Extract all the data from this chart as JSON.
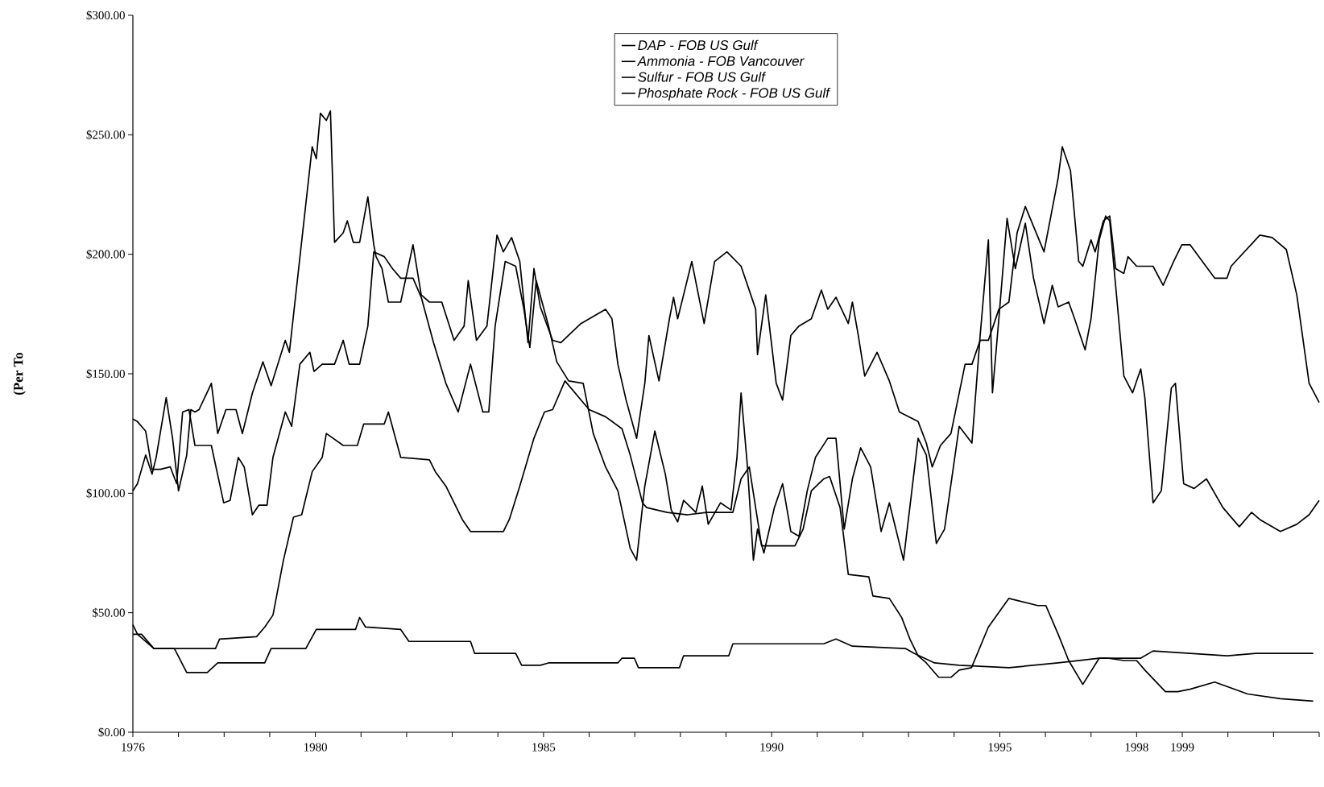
{
  "chart_data": {
    "type": "line",
    "ylabel": "(Per To",
    "xlim": [
      1976,
      2002
    ],
    "ylim": [
      0,
      300
    ],
    "yticks": [
      {
        "value": 0,
        "label": "$0.00"
      },
      {
        "value": 50,
        "label": "$50.00"
      },
      {
        "value": 100,
        "label": "$100.00"
      },
      {
        "value": 150,
        "label": "$150.00"
      },
      {
        "value": 200,
        "label": "$200.00"
      },
      {
        "value": 250,
        "label": "$250.00"
      },
      {
        "value": 300,
        "label": "$300.00"
      }
    ],
    "xticks": [
      1976,
      {
        "value": 1977,
        "label": null
      },
      {
        "value": 1978,
        "label": null
      },
      {
        "value": 1979,
        "label": null
      },
      1980,
      {
        "value": 1981,
        "label": null
      },
      {
        "value": 1982,
        "label": null
      },
      {
        "value": 1983,
        "label": null
      },
      {
        "value": 1984,
        "label": null
      },
      1985,
      {
        "value": 1986,
        "label": null
      },
      {
        "value": 1987,
        "label": null
      },
      {
        "value": 1988,
        "label": null
      },
      {
        "value": 1989,
        "label": null
      },
      1990,
      {
        "value": 1991,
        "label": null
      },
      {
        "value": 1992,
        "label": null
      },
      {
        "value": 1993,
        "label": null
      },
      {
        "value": 1994,
        "label": null
      },
      1995,
      {
        "value": 1996,
        "label": null
      },
      {
        "value": 1997,
        "label": null
      },
      1998,
      1999,
      {
        "value": 2000,
        "label": null
      },
      {
        "value": 2001,
        "label": null
      },
      {
        "value": 2002,
        "label": null
      }
    ],
    "legend": "top",
    "grid": false,
    "series": [
      {
        "name": "DAP - FOB US Gulf",
        "color": "#000000",
        "x": [
          1976.0,
          1976.1,
          1976.28,
          1976.42,
          1976.51,
          1976.73,
          1976.87,
          1977.0,
          1977.18,
          1977.27,
          1977.36,
          1977.45,
          1977.72,
          1977.86,
          1978.04,
          1978.26,
          1978.4,
          1978.62,
          1978.85,
          1979.03,
          1979.34,
          1979.43,
          1979.61,
          1979.93,
          1980.02,
          1980.11,
          1980.24,
          1980.33,
          1980.42,
          1980.61,
          1980.7,
          1980.83,
          1980.97,
          1981.15,
          1981.28,
          1981.33,
          1981.46,
          1981.6,
          1981.87,
          1982.14,
          1982.32,
          1982.5,
          1982.77,
          1983.04,
          1983.26,
          1983.35,
          1983.53,
          1983.76,
          1983.98,
          1984.12,
          1984.3,
          1984.48,
          1984.66,
          1984.79,
          1984.93,
          1985.2,
          1985.38,
          1985.82,
          1986.36,
          1986.5,
          1986.63,
          1986.81,
          1987.04,
          1987.22,
          1987.31,
          1987.53,
          1987.76,
          1987.85,
          1987.94,
          1988.07,
          1988.25,
          1988.52,
          1988.75,
          1989.02,
          1989.33,
          1989.65,
          1989.69,
          1989.87,
          1990.1,
          1990.24,
          1990.42,
          1990.6,
          1990.87,
          1991.09,
          1991.23,
          1991.41,
          1991.68,
          1991.77,
          1991.9,
          1992.04,
          1992.31,
          1992.58,
          1992.8,
          1993.21,
          1993.39,
          1993.52,
          1993.7,
          1993.93,
          1994.24,
          1994.39,
          1994.57,
          1994.75,
          1994.98,
          1995.2,
          1995.38,
          1995.56,
          1995.97,
          1996.28,
          1996.37,
          1996.55,
          1996.73,
          1996.82,
          1997.0,
          1997.09,
          1997.27,
          1997.41,
          1997.54,
          1997.72,
          1997.81,
          1998.0,
          1998.36,
          1998.58,
          1998.81,
          1998.99,
          1999.17,
          1999.71,
          1999.98,
          2000.07,
          2000.7,
          2000.97,
          2001.28,
          2001.51,
          2001.78,
          2002.0
        ],
        "values": [
          101,
          104,
          116,
          108,
          115,
          140,
          123,
          101,
          116,
          135,
          134,
          135,
          146,
          125,
          135,
          135,
          125,
          142,
          155,
          145,
          164,
          159,
          190,
          245,
          240,
          259,
          256,
          260,
          205,
          209,
          214,
          205,
          205,
          224,
          204,
          199,
          194,
          180,
          180,
          204,
          183,
          180,
          180,
          164,
          170,
          189,
          164,
          170,
          208,
          201,
          207,
          197,
          163,
          194,
          178,
          164,
          163,
          171,
          177,
          173,
          154,
          139,
          123,
          146,
          166,
          147,
          173,
          182,
          173,
          183,
          197,
          171,
          197,
          201,
          195,
          177,
          158,
          183,
          146,
          139,
          166,
          170,
          173,
          185,
          177,
          182,
          171,
          180,
          166,
          149,
          159,
          147,
          134,
          130,
          121,
          111,
          120,
          125,
          154,
          154,
          164,
          164,
          177,
          180,
          209,
          220,
          201,
          232,
          245,
          235,
          197,
          195,
          206,
          201,
          214,
          216,
          194,
          192,
          199,
          195,
          195,
          187,
          197,
          204,
          204,
          190,
          190,
          195,
          208,
          207,
          202,
          183,
          146,
          138
        ]
      },
      {
        "name": "Ammonia - FOB Vancouver",
        "color": "#000000",
        "x": [
          1976.0,
          1976.1,
          1976.28,
          1976.42,
          1976.6,
          1976.82,
          1976.96,
          1977.09,
          1977.23,
          1977.36,
          1977.72,
          1977.99,
          1978.13,
          1978.31,
          1978.44,
          1978.62,
          1978.76,
          1978.94,
          1979.07,
          1979.34,
          1979.48,
          1979.66,
          1979.88,
          1979.97,
          1980.15,
          1980.42,
          1980.61,
          1980.74,
          1980.97,
          1981.15,
          1981.28,
          1981.51,
          1981.69,
          1981.87,
          1982.14,
          1982.32,
          1982.59,
          1982.86,
          1983.13,
          1983.4,
          1983.67,
          1983.8,
          1983.94,
          1984.16,
          1984.39,
          1984.57,
          1984.7,
          1984.84,
          1985.11,
          1985.29,
          1985.55,
          1985.87,
          1986.09,
          1986.36,
          1986.63,
          1986.9,
          1987.04,
          1987.22,
          1987.44,
          1987.67,
          1987.8,
          1987.94,
          1988.07,
          1988.34,
          1988.48,
          1988.61,
          1988.88,
          1989.11,
          1989.24,
          1989.33,
          1989.47,
          1989.6,
          1989.69,
          1989.83,
          1990.06,
          1990.24,
          1990.42,
          1990.6,
          1990.78,
          1990.96,
          1991.23,
          1991.41,
          1991.59,
          1991.77,
          1991.95,
          1992.17,
          1992.4,
          1992.58,
          1992.89,
          1993.21,
          1993.39,
          1993.61,
          1993.79,
          1994.11,
          1994.39,
          1994.57,
          1994.75,
          1994.84,
          1994.98,
          1995.16,
          1995.34,
          1995.56,
          1995.74,
          1995.97,
          1996.15,
          1996.28,
          1996.51,
          1996.64,
          1996.87,
          1997.0,
          1997.18,
          1997.32,
          1997.41,
          1997.72,
          1997.91,
          1998.09,
          1998.18,
          1998.36,
          1998.54,
          1998.76,
          1998.85,
          1999.03,
          1999.26,
          1999.53,
          1999.89,
          2000.25,
          2000.52,
          2000.7,
          2001.15,
          2001.51,
          2001.78,
          2002.0
        ],
        "values": [
          131,
          130,
          126,
          110,
          110,
          111,
          104,
          134,
          135,
          120,
          120,
          96,
          97,
          115,
          111,
          91,
          95,
          95,
          115,
          134,
          128,
          154,
          159,
          151,
          154,
          154,
          164,
          154,
          154,
          170,
          201,
          199,
          194,
          190,
          190,
          182,
          163,
          146,
          134,
          154,
          134,
          134,
          170,
          197,
          195,
          177,
          161,
          189,
          170,
          155,
          147,
          146,
          125,
          111,
          101,
          77,
          72,
          103,
          126,
          108,
          93,
          88,
          97,
          92,
          103,
          87,
          96,
          93,
          115,
          142,
          111,
          72,
          85,
          75,
          94,
          104,
          84,
          82,
          101,
          115,
          123,
          123,
          85,
          106,
          119,
          111,
          84,
          96,
          72,
          123,
          116,
          79,
          85,
          128,
          121,
          166,
          206,
          142,
          173,
          215,
          194,
          213,
          190,
          171,
          187,
          178,
          180,
          173,
          160,
          173,
          206,
          216,
          214,
          149,
          142,
          152,
          140,
          96,
          101,
          144,
          146,
          104,
          102,
          106,
          94,
          86,
          92,
          89,
          84,
          87,
          91,
          97
        ]
      },
      {
        "name": "Sulfur - FOB US Gulf",
        "color": "#000000",
        "x": [
          1976.0,
          1976.1,
          1976.46,
          1977.81,
          1977.9,
          1978.71,
          1978.89,
          1979.07,
          1979.3,
          1979.52,
          1979.7,
          1979.93,
          1980.15,
          1980.24,
          1980.61,
          1980.92,
          1981.06,
          1981.51,
          1981.6,
          1981.87,
          1982.5,
          1982.63,
          1982.86,
          1983.22,
          1983.4,
          1984.12,
          1984.25,
          1984.48,
          1984.79,
          1985.02,
          1985.2,
          1985.47,
          1985.91,
          1986.0,
          1986.36,
          1986.72,
          1986.9,
          1987.17,
          1987.26,
          1987.71,
          1988.16,
          1988.57,
          1989.15,
          1989.33,
          1989.51,
          1989.78,
          1989.96,
          1990.51,
          1990.69,
          1990.87,
          1991.14,
          1991.27,
          1991.5,
          1991.68,
          1992.13,
          1992.22,
          1992.58,
          1992.85,
          1993.03,
          1993.21,
          1993.39,
          1993.66,
          1993.93,
          1994.11,
          1994.38,
          1994.75,
          1995.2,
          1995.83,
          1996.01,
          1996.28,
          1996.51,
          1996.82,
          1997.18,
          1997.36,
          1997.72,
          1998.0,
          1998.18,
          1998.63,
          1998.9,
          1999.17,
          1999.71,
          2000.43,
          2001.15,
          2001.87
        ],
        "values": [
          45,
          41,
          35,
          35,
          39,
          40,
          44,
          49,
          72,
          90,
          91,
          109,
          115,
          125,
          120,
          120,
          129,
          129,
          134,
          115,
          114,
          109,
          103,
          89,
          84,
          84,
          89,
          103,
          123,
          134,
          135,
          147,
          137,
          135,
          132,
          127,
          116,
          96,
          94,
          92,
          91,
          92,
          92,
          106,
          111,
          78,
          78,
          78,
          85,
          101,
          106,
          107,
          94,
          66,
          65,
          57,
          56,
          48,
          39,
          32,
          29,
          23,
          23,
          26,
          27,
          44,
          56,
          53,
          53,
          41,
          30,
          20,
          31,
          31,
          30,
          30,
          26,
          17,
          17,
          18,
          21,
          16,
          14,
          13
        ]
      },
      {
        "name": "Phosphate Rock - FOB US Gulf",
        "color": "#000000",
        "x": [
          1976.0,
          1976.19,
          1976.46,
          1976.91,
          1977.18,
          1977.63,
          1977.86,
          1978.89,
          1979.03,
          1979.79,
          1980.02,
          1980.88,
          1980.97,
          1981.1,
          1981.87,
          1982.05,
          1983.4,
          1983.49,
          1984.39,
          1984.52,
          1984.93,
          1985.11,
          1985.38,
          1986.63,
          1986.72,
          1986.99,
          1987.08,
          1987.98,
          1988.07,
          1989.06,
          1989.15,
          1991.14,
          1991.41,
          1991.77,
          1992.94,
          1993.12,
          1993.57,
          1994.11,
          1995.2,
          1996.28,
          1997.18,
          1998.09,
          1998.36,
          1999.17,
          1999.98,
          2000.61,
          2001.87
        ],
        "values": [
          41,
          41,
          35,
          35,
          25,
          25,
          29,
          29,
          35,
          35,
          43,
          43,
          48,
          44,
          43,
          38,
          38,
          33,
          33,
          28,
          28,
          29,
          29,
          29,
          31,
          31,
          27,
          27,
          32,
          32,
          37,
          37,
          39,
          36,
          35,
          33,
          29,
          28,
          27,
          29,
          31,
          31,
          34,
          33,
          32,
          33,
          33
        ]
      }
    ]
  }
}
